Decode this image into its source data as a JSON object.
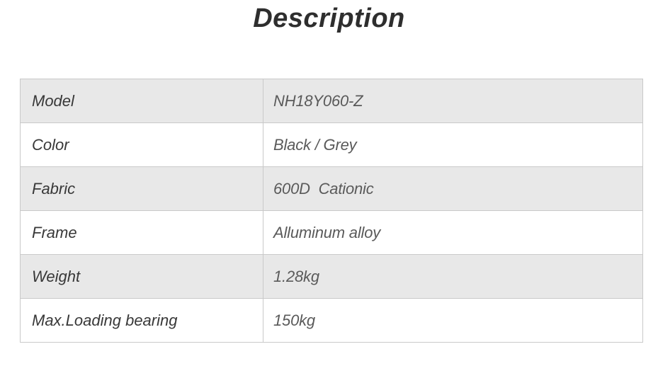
{
  "page": {
    "title": "Description"
  },
  "colors": {
    "page_bg": "#ffffff",
    "title_text": "#2e2e2e",
    "border": "#c9c9c9",
    "row_alt_bg": "#e8e8e8",
    "row_bg": "#ffffff",
    "label_text": "#383838",
    "value_text": "#5a5a5a"
  },
  "table": {
    "rows": [
      {
        "label": "Model",
        "value": "NH18Y060-Z"
      },
      {
        "label": "Color",
        "value": "Black / Grey"
      },
      {
        "label": "Fabric",
        "value": "600D  Cationic"
      },
      {
        "label": "Frame",
        "value": "Alluminum alloy"
      },
      {
        "label": "Weight",
        "value": "1.28kg"
      },
      {
        "label": "Max.Loading bearing",
        "value": "150kg"
      }
    ]
  }
}
